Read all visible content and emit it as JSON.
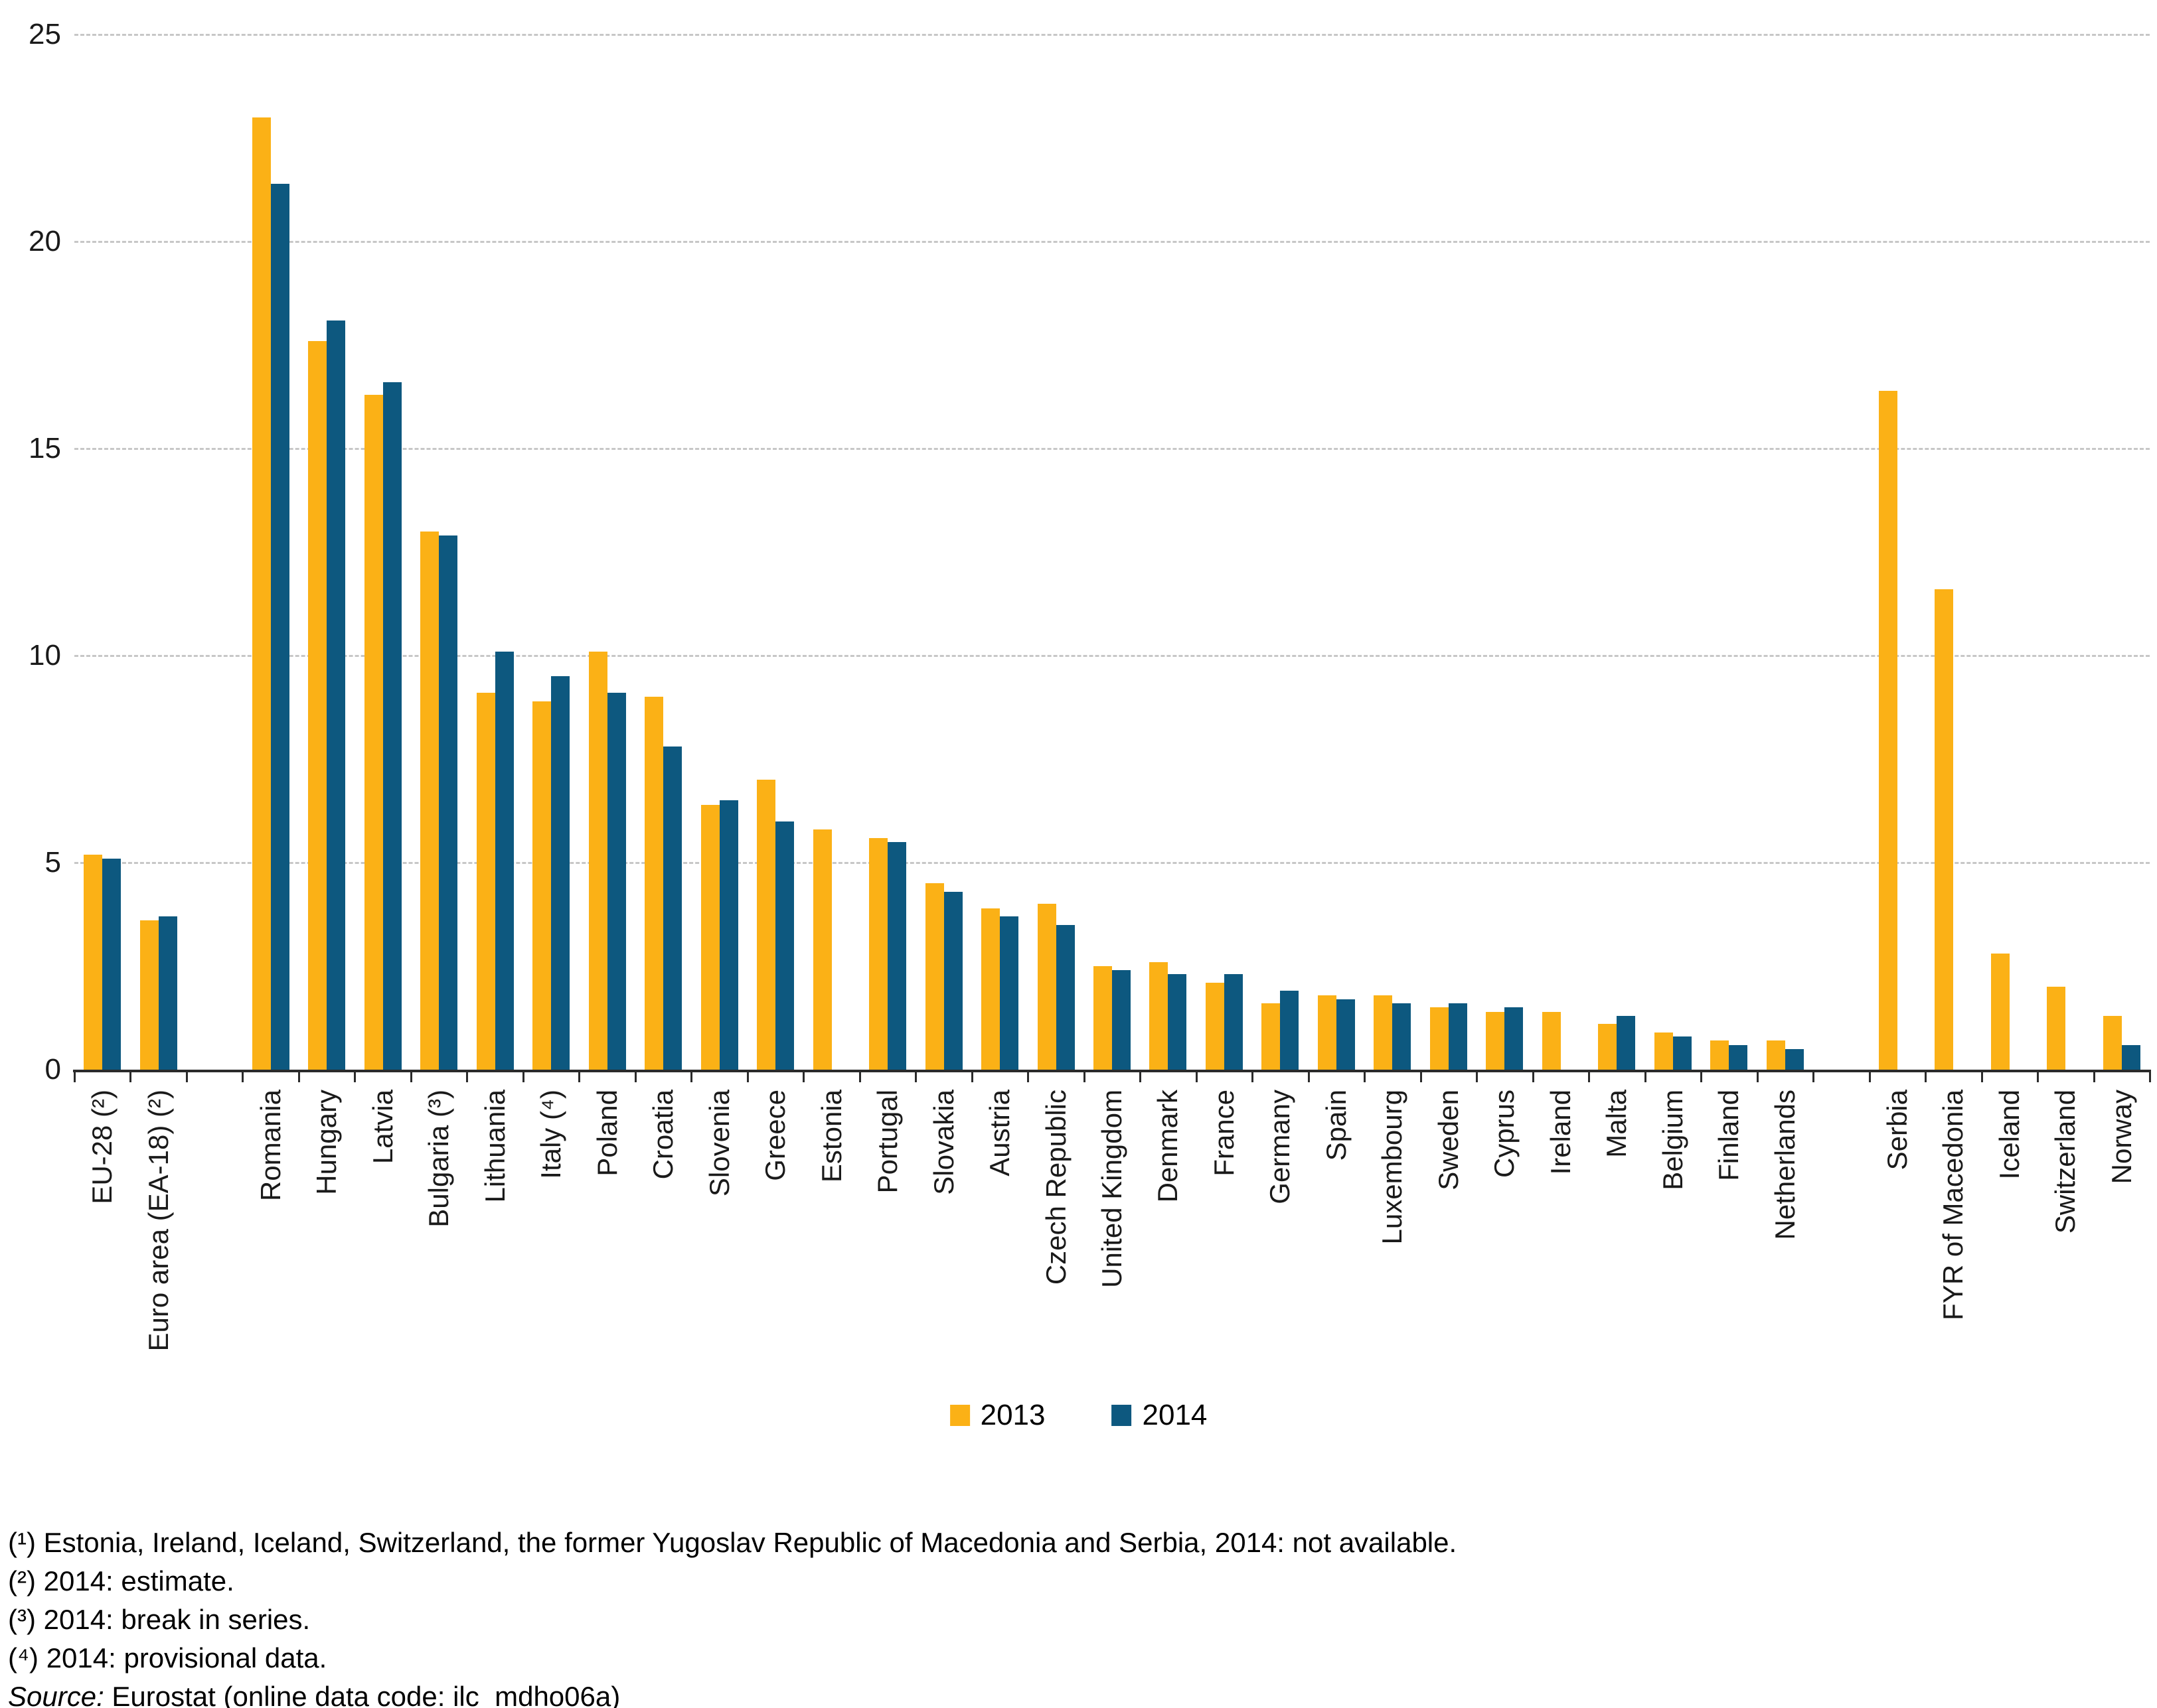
{
  "chart_data": {
    "type": "bar",
    "title": "",
    "xlabel": "",
    "ylabel": "",
    "ylim": [
      0,
      25
    ],
    "y_ticks": [
      0,
      5,
      10,
      15,
      20,
      25
    ],
    "grid": "horizontal dashed",
    "legend_position": "bottom center",
    "categories": [
      "EU-28 (²)",
      "Euro area (EA-18) (²)",
      "Romania",
      "Hungary",
      "Latvia",
      "Bulgaria (³)",
      "Lithuania",
      "Italy (⁴)",
      "Poland",
      "Croatia",
      "Slovenia",
      "Greece",
      "Estonia",
      "Portugal",
      "Slovakia",
      "Austria",
      "Czech Republic",
      "United Kingdom",
      "Denmark",
      "France",
      "Germany",
      "Spain",
      "Luxembourg",
      "Sweden",
      "Cyprus",
      "Ireland",
      "Malta",
      "Belgium",
      "Finland",
      "Netherlands",
      "Serbia",
      "FYR of Macedonia",
      "Iceland",
      "Switzerland",
      "Norway"
    ],
    "group_gaps_after": [
      "Euro area (EA-18) (²)",
      "Netherlands"
    ],
    "series": [
      {
        "name": "2013",
        "color": "#FBB116",
        "values": [
          5.2,
          3.6,
          23.0,
          17.6,
          16.3,
          13.0,
          9.1,
          8.9,
          10.1,
          9.0,
          6.4,
          7.0,
          5.8,
          5.6,
          4.5,
          3.9,
          4.0,
          2.5,
          2.6,
          2.1,
          1.6,
          1.8,
          1.8,
          1.5,
          1.4,
          1.4,
          1.1,
          0.9,
          0.7,
          0.7,
          16.4,
          11.6,
          2.8,
          2.0,
          1.3
        ]
      },
      {
        "name": "2014",
        "color": "#0D587F",
        "values": [
          5.1,
          3.7,
          21.4,
          18.1,
          16.6,
          12.9,
          10.1,
          9.5,
          9.1,
          7.8,
          6.5,
          6.0,
          null,
          5.5,
          4.3,
          3.7,
          3.5,
          2.4,
          2.3,
          2.3,
          1.9,
          1.7,
          1.6,
          1.6,
          1.5,
          null,
          1.3,
          0.8,
          0.6,
          0.5,
          null,
          null,
          null,
          null,
          0.6
        ]
      }
    ]
  },
  "footnotes": [
    "(¹) Estonia, Ireland, Iceland, Switzerland, the former Yugoslav Republic of Macedonia and Serbia, 2014: not available.",
    "(²) 2014: estimate.",
    "(³) 2014: break in series.",
    "(⁴) 2014: provisional data."
  ],
  "source": {
    "label": "Source:",
    "text": "Eurostat (online data code: ilc_mdho06a)"
  }
}
